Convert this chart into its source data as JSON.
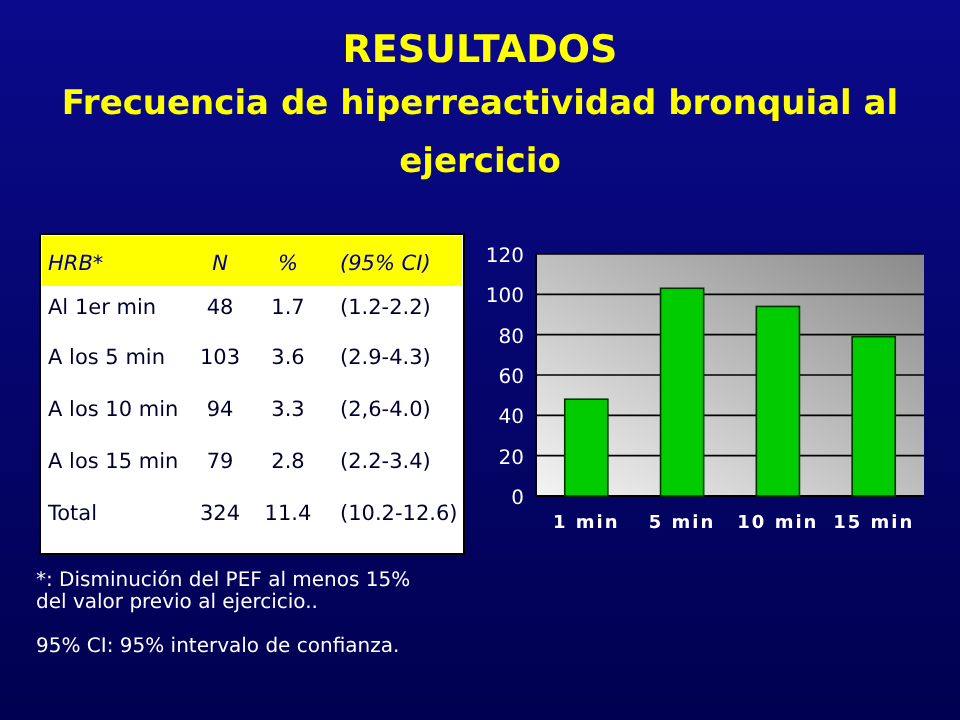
{
  "chart_data": {
    "type": "bar",
    "title": "RESULTADOS",
    "subtitle": "Frecuencia de hiperreactividad bronquial al ejercicio",
    "categories": [
      "1 min",
      "5 min",
      "10 min",
      "15 min"
    ],
    "values": [
      48,
      103,
      94,
      79
    ],
    "color": "#00cc00",
    "ylim": [
      0,
      120
    ],
    "yticks": [
      0,
      20,
      40,
      60,
      80,
      100,
      120
    ],
    "grid": "y",
    "annotations": [
      "HRB*",
      "N",
      "%",
      "(95% CI)",
      "Al 1er min",
      "48",
      "1.7",
      "(1.2-2.2)",
      "A los 5 min",
      "103",
      "3.6",
      "(2.9-4.3)",
      "A los 10 min",
      "94",
      "3.3",
      "(2,6-4.0)",
      "A los 15 min",
      "79",
      "2.8",
      "(2.2-3.4)",
      "Total",
      "324",
      "11.4",
      "(10.2-12.6)",
      "*: Disminución del PEF al menos 15%",
      "del valor previo al ejercicio..",
      "95% CI: 95% intervalo de confianza."
    ]
  }
}
